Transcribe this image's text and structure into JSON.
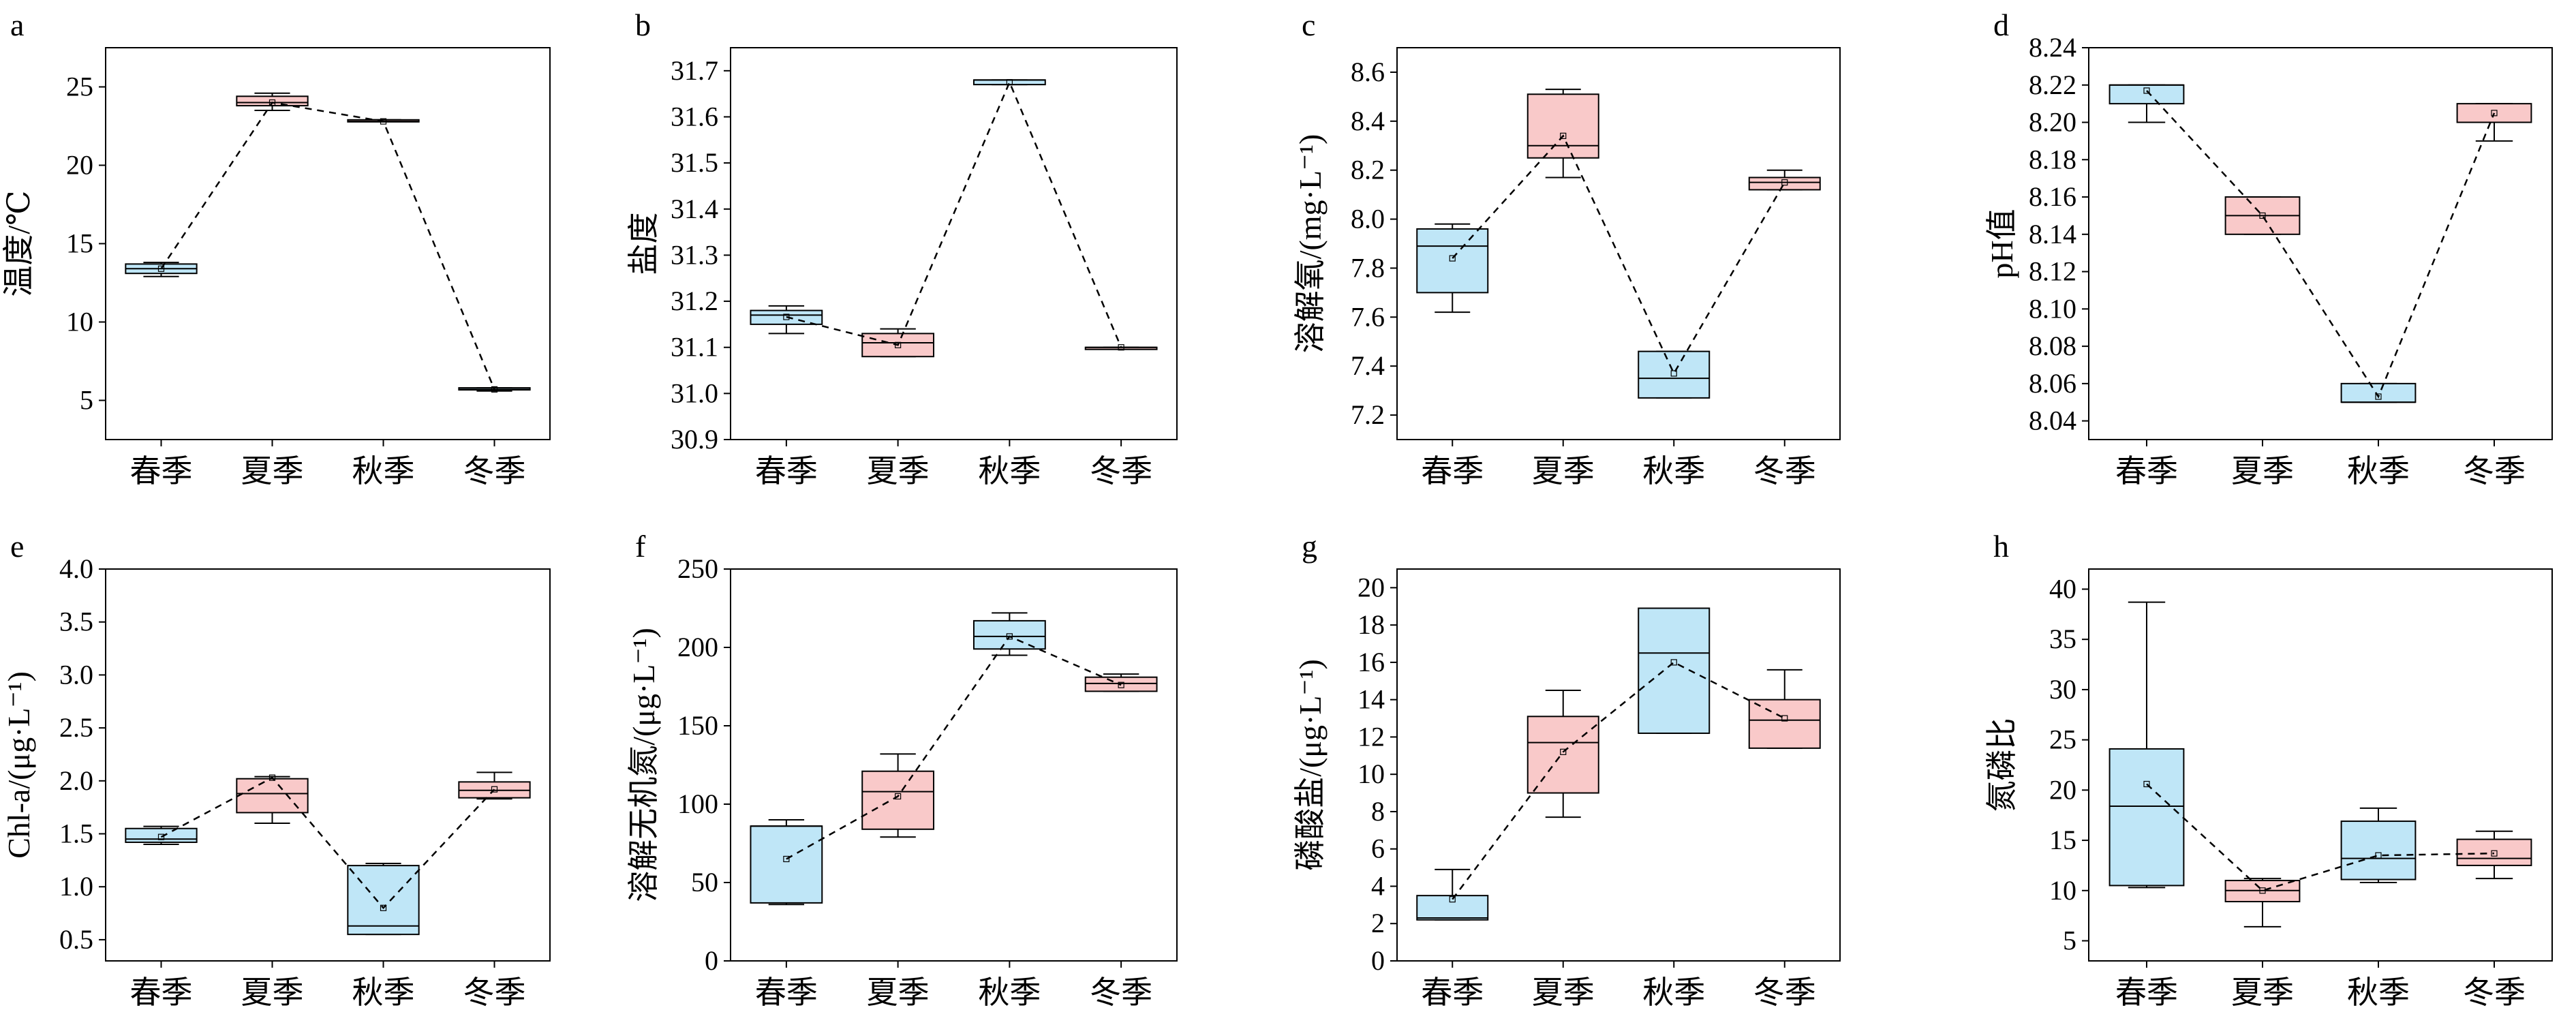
{
  "colors": {
    "cold_season": "#bfe6f7",
    "warm_season": "#f9c9c9",
    "stroke": "#000000"
  },
  "chart_data": [
    {
      "type": "box",
      "panel": "a",
      "ylabel": "温度/℃",
      "categories": [
        "春季",
        "夏季",
        "秋季",
        "冬季"
      ],
      "fills": [
        "cold",
        "warm",
        "warm",
        "cold"
      ],
      "ylim": [
        2.5,
        27.5
      ],
      "yticks": [
        5,
        10,
        15,
        20,
        25
      ],
      "boxes": [
        {
          "whislo": 12.9,
          "q1": 13.1,
          "med": 13.4,
          "q3": 13.7,
          "whishi": 13.8,
          "mean": 13.4
        },
        {
          "whislo": 23.5,
          "q1": 23.8,
          "med": 24.0,
          "q3": 24.4,
          "whishi": 24.6,
          "mean": 24.0
        },
        {
          "whislo": 22.8,
          "q1": 22.8,
          "med": 22.8,
          "q3": 22.9,
          "whishi": 22.9,
          "mean": 22.8
        },
        {
          "whislo": 5.6,
          "q1": 5.7,
          "med": 5.7,
          "q3": 5.8,
          "whishi": 5.8,
          "mean": 5.7
        }
      ]
    },
    {
      "type": "box",
      "panel": "b",
      "ylabel": "盐度",
      "categories": [
        "春季",
        "夏季",
        "秋季",
        "冬季"
      ],
      "fills": [
        "cold",
        "warm",
        "cold",
        "warm"
      ],
      "ylim": [
        30.9,
        31.75
      ],
      "yticks": [
        30.9,
        31.0,
        31.1,
        31.2,
        31.3,
        31.4,
        31.5,
        31.6,
        31.7
      ],
      "tick_labels": [
        "30.9",
        "31.0",
        "31.1",
        "31.2",
        "31.3",
        "31.4",
        "31.5",
        "31.6",
        "31.7"
      ],
      "boxes": [
        {
          "whislo": 31.13,
          "q1": 31.15,
          "med": 31.17,
          "q3": 31.18,
          "whishi": 31.19,
          "mean": 31.166
        },
        {
          "whislo": 31.08,
          "q1": 31.08,
          "med": 31.11,
          "q3": 31.13,
          "whishi": 31.14,
          "mean": 31.105
        },
        {
          "whislo": 31.67,
          "q1": 31.67,
          "med": 31.68,
          "q3": 31.68,
          "whishi": 31.68,
          "mean": 31.675
        },
        {
          "whislo": 31.1,
          "q1": 31.1,
          "med": 31.1,
          "q3": 31.1,
          "whishi": 31.1,
          "mean": 31.1
        }
      ]
    },
    {
      "type": "box",
      "panel": "c",
      "ylabel": "溶解氧/(mg·L⁻¹)",
      "categories": [
        "春季",
        "夏季",
        "秋季",
        "冬季"
      ],
      "fills": [
        "cold",
        "warm",
        "cold",
        "warm"
      ],
      "ylim": [
        7.1,
        8.7
      ],
      "yticks": [
        7.2,
        7.4,
        7.6,
        7.8,
        8.0,
        8.2,
        8.4,
        8.6
      ],
      "tick_labels": [
        "7.2",
        "7.4",
        "7.6",
        "7.8",
        "8.0",
        "8.2",
        "8.4",
        "8.6"
      ],
      "boxes": [
        {
          "whislo": 7.62,
          "q1": 7.7,
          "med": 7.89,
          "q3": 7.96,
          "whishi": 7.98,
          "mean": 7.84
        },
        {
          "whislo": 8.17,
          "q1": 8.25,
          "med": 8.3,
          "q3": 8.51,
          "whishi": 8.53,
          "mean": 8.34
        },
        {
          "whislo": 7.27,
          "q1": 7.27,
          "med": 7.35,
          "q3": 7.46,
          "whishi": 7.46,
          "mean": 7.37
        },
        {
          "whislo": 8.12,
          "q1": 8.12,
          "med": 8.15,
          "q3": 8.17,
          "whishi": 8.2,
          "mean": 8.15
        }
      ]
    },
    {
      "type": "box",
      "panel": "d",
      "ylabel": "pH值",
      "categories": [
        "春季",
        "夏季",
        "秋季",
        "冬季"
      ],
      "fills": [
        "cold",
        "warm",
        "cold",
        "warm"
      ],
      "ylim": [
        8.03,
        8.24
      ],
      "yticks": [
        8.04,
        8.06,
        8.08,
        8.1,
        8.12,
        8.14,
        8.16,
        8.18,
        8.2,
        8.22,
        8.24
      ],
      "tick_labels": [
        "8.04",
        "8.06",
        "8.08",
        "8.10",
        "8.12",
        "8.14",
        "8.16",
        "8.18",
        "8.20",
        "8.22",
        "8.24"
      ],
      "boxes": [
        {
          "whislo": 8.2,
          "q1": 8.21,
          "med": 8.22,
          "q3": 8.22,
          "whishi": 8.22,
          "mean": 8.217
        },
        {
          "whislo": 8.14,
          "q1": 8.14,
          "med": 8.15,
          "q3": 8.16,
          "whishi": 8.16,
          "mean": 8.15
        },
        {
          "whislo": 8.05,
          "q1": 8.05,
          "med": 8.05,
          "q3": 8.06,
          "whishi": 8.06,
          "mean": 8.053
        },
        {
          "whislo": 8.19,
          "q1": 8.2,
          "med": 8.2,
          "q3": 8.21,
          "whishi": 8.21,
          "mean": 8.205
        }
      ]
    },
    {
      "type": "box",
      "panel": "e",
      "ylabel": "Chl-a/(μg·L⁻¹)",
      "categories": [
        "春季",
        "夏季",
        "秋季",
        "冬季"
      ],
      "fills": [
        "cold",
        "warm",
        "cold",
        "warm"
      ],
      "ylim": [
        0.3,
        4.0
      ],
      "yticks": [
        0.5,
        1.0,
        1.5,
        2.0,
        2.5,
        3.0,
        3.5,
        4.0
      ],
      "tick_labels": [
        "0.5",
        "1.0",
        "1.5",
        "2.0",
        "2.5",
        "3.0",
        "3.5",
        "4.0"
      ],
      "boxes": [
        {
          "whislo": 1.4,
          "q1": 1.42,
          "med": 1.45,
          "q3": 1.55,
          "whishi": 1.57,
          "mean": 1.47
        },
        {
          "whislo": 1.6,
          "q1": 1.7,
          "med": 1.88,
          "q3": 2.02,
          "whishi": 2.04,
          "mean": 2.03
        },
        {
          "whislo": 0.55,
          "q1": 0.55,
          "med": 0.63,
          "q3": 1.2,
          "whishi": 1.22,
          "mean": 0.8
        },
        {
          "whislo": 1.83,
          "q1": 1.84,
          "med": 1.91,
          "q3": 1.99,
          "whishi": 2.08,
          "mean": 1.92
        }
      ]
    },
    {
      "type": "box",
      "panel": "f",
      "ylabel": "溶解无机氮/(μg·L⁻¹)",
      "categories": [
        "春季",
        "夏季",
        "秋季",
        "冬季"
      ],
      "fills": [
        "cold",
        "warm",
        "cold",
        "warm"
      ],
      "ylim": [
        0,
        250
      ],
      "yticks": [
        0,
        50,
        100,
        150,
        200,
        250
      ],
      "boxes": [
        {
          "whislo": 36,
          "q1": 37,
          "med": 86,
          "q3": 86,
          "whishi": 90,
          "mean": 65
        },
        {
          "whislo": 79,
          "q1": 84,
          "med": 108,
          "q3": 121,
          "whishi": 132,
          "mean": 105
        },
        {
          "whislo": 195,
          "q1": 199,
          "med": 207,
          "q3": 217,
          "whishi": 222,
          "mean": 207
        },
        {
          "whislo": 172,
          "q1": 172,
          "med": 177,
          "q3": 181,
          "whishi": 183,
          "mean": 176
        }
      ]
    },
    {
      "type": "box",
      "panel": "g",
      "ylabel": "磷酸盐/(μg·L⁻¹)",
      "categories": [
        "春季",
        "夏季",
        "秋季",
        "冬季"
      ],
      "fills": [
        "cold",
        "warm",
        "cold",
        "warm"
      ],
      "ylim": [
        0,
        21
      ],
      "yticks": [
        0,
        2,
        4,
        6,
        8,
        10,
        12,
        14,
        16,
        18,
        20
      ],
      "boxes": [
        {
          "whislo": 2.2,
          "q1": 2.2,
          "med": 2.3,
          "q3": 3.5,
          "whishi": 4.9,
          "mean": 3.3
        },
        {
          "whislo": 7.7,
          "q1": 9.0,
          "med": 11.7,
          "q3": 13.1,
          "whishi": 14.5,
          "mean": 11.2
        },
        {
          "whislo": 12.2,
          "q1": 12.2,
          "med": 16.5,
          "q3": 18.9,
          "whishi": 18.9,
          "mean": 16.0
        },
        {
          "whislo": 11.4,
          "q1": 11.4,
          "med": 12.9,
          "q3": 14.0,
          "whishi": 15.6,
          "mean": 13.0
        }
      ]
    },
    {
      "type": "box",
      "panel": "h",
      "ylabel": "氮磷比",
      "categories": [
        "春季",
        "夏季",
        "秋季",
        "冬季"
      ],
      "fills": [
        "cold",
        "warm",
        "cold",
        "warm"
      ],
      "ylim": [
        3,
        42
      ],
      "yticks": [
        5,
        10,
        15,
        20,
        25,
        30,
        35,
        40
      ],
      "boxes": [
        {
          "whislo": 10.3,
          "q1": 10.5,
          "med": 18.4,
          "q3": 24.1,
          "whishi": 38.7,
          "mean": 20.6
        },
        {
          "whislo": 6.4,
          "q1": 8.9,
          "med": 10.0,
          "q3": 11.0,
          "whishi": 11.2,
          "mean": 10.0
        },
        {
          "whislo": 10.8,
          "q1": 11.1,
          "med": 13.2,
          "q3": 16.9,
          "whishi": 18.2,
          "mean": 13.5
        },
        {
          "whislo": 11.2,
          "q1": 12.5,
          "med": 13.2,
          "q3": 15.1,
          "whishi": 15.9,
          "mean": 13.7
        }
      ]
    }
  ]
}
